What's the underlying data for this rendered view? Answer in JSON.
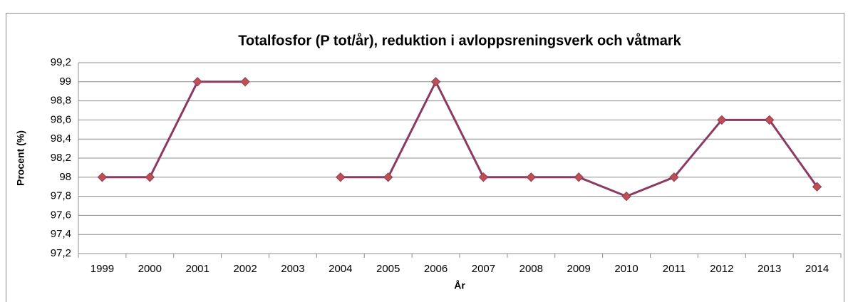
{
  "chart_data": {
    "type": "line",
    "title": "Totalfosfor (P tot/år), reduktion i avloppsreningsverk och våtmark",
    "x_label": "År",
    "y_label": "Procent (%)",
    "categories": [
      "1999",
      "2000",
      "2001",
      "2002",
      "2003",
      "2004",
      "2005",
      "2006",
      "2007",
      "2008",
      "2009",
      "2010",
      "2011",
      "2012",
      "2013",
      "2014"
    ],
    "series": [
      {
        "name": "Totalfosfor",
        "color": "#8b3a62",
        "marker_color": "#c0504d",
        "values": [
          98,
          98,
          99,
          99,
          null,
          98,
          98,
          99,
          98,
          98,
          98,
          97.8,
          98,
          98.6,
          98.6,
          97.9
        ]
      }
    ],
    "ylim": [
      97.2,
      99.2
    ],
    "yticks": [
      {
        "value": 97.2,
        "label": "97,2"
      },
      {
        "value": 97.4,
        "label": "97,4"
      },
      {
        "value": 97.6,
        "label": "97,6"
      },
      {
        "value": 97.8,
        "label": "97,8"
      },
      98,
      {
        "value": 98.2,
        "label": "98,2"
      },
      {
        "value": 98.4,
        "label": "98,4"
      },
      {
        "value": 98.6,
        "label": "98,6"
      },
      {
        "value": 98.8,
        "label": "98,8"
      },
      99,
      {
        "value": 99.2,
        "label": "99,2"
      }
    ],
    "grid": true
  }
}
